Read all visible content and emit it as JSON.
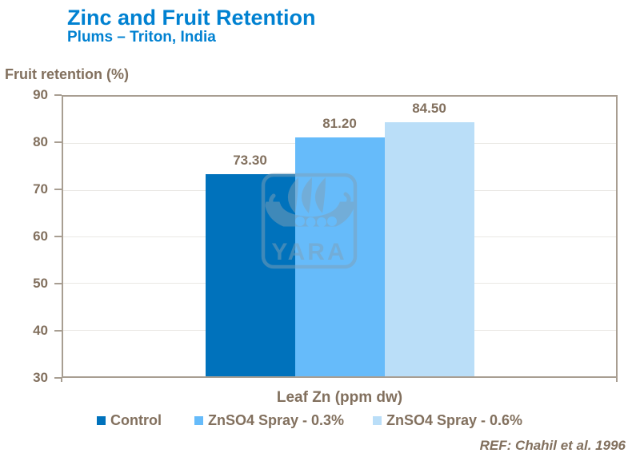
{
  "header": {
    "title": "Zinc and Fruit Retention",
    "subtitle": "Plums – Triton, India"
  },
  "chart_data": {
    "type": "bar",
    "title": "Zinc and Fruit Retention",
    "subtitle": "Plums – Triton, India",
    "ylabel": "Fruit retention (%)",
    "xlabel": "Leaf Zn (ppm dw)",
    "ylim": [
      30,
      90
    ],
    "yticks": [
      90,
      80,
      70,
      60,
      50,
      40,
      30
    ],
    "grid": true,
    "legend_position": "bottom",
    "categories": [
      "Leaf Zn (ppm dw)"
    ],
    "series": [
      {
        "name": "Control",
        "value": 73.3,
        "value_label": "73.30",
        "color": "#0072BC"
      },
      {
        "name": "ZnSO4 Spray - 0.3%",
        "value": 81.2,
        "value_label": "81.20",
        "color": "#66BBFA"
      },
      {
        "name": "ZnSO4 Spray - 0.6%",
        "value": 84.5,
        "value_label": "84.50",
        "color": "#BADEF8"
      }
    ]
  },
  "watermark": {
    "logo_text": "YARA"
  },
  "footer": {
    "reference": "REF: Chahil et al. 1996"
  },
  "colors": {
    "title_blue": "#0081D1",
    "text_brown": "#82705E",
    "axis_frame": "#A89E92",
    "gridline": "#EAE8E4",
    "watermark": "#7FA0B8"
  }
}
